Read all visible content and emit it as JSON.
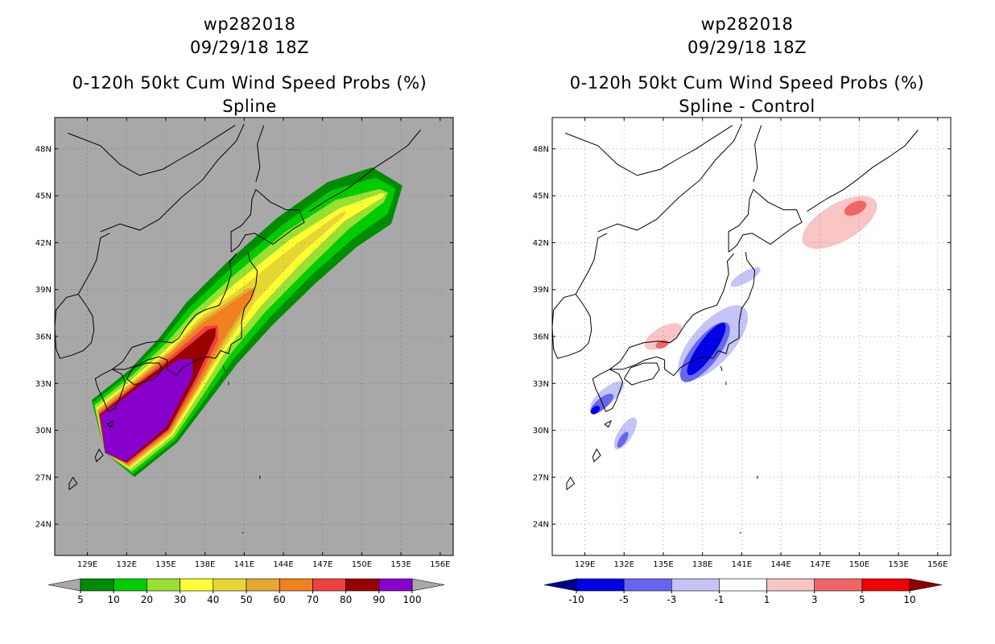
{
  "panels": [
    {
      "id": "left",
      "title_line1": "wp282018",
      "title_line2": "09/29/18 18Z",
      "title_line3": "0-120h 50kt Cum Wind Speed Probs (%)",
      "subtitle": "Spline",
      "background": "#a8a8a8"
    },
    {
      "id": "right",
      "title_line1": "wp282018",
      "title_line2": "09/29/18 18Z",
      "title_line3": "0-120h 50kt Cum Wind Speed Probs (%)",
      "subtitle": "Spline - Control",
      "background": "#ffffff"
    }
  ],
  "chart_data": [
    {
      "type": "heatmap",
      "title": "0-120h 50kt Cum Wind Speed Probs (%)",
      "subtitle": "Spline",
      "storm": "wp282018",
      "init_time": "09/29/18 18Z",
      "x_range": [
        126.5,
        157.0
      ],
      "y_range": [
        22.0,
        50.0
      ],
      "x_ticks": [
        129,
        132,
        135,
        138,
        141,
        144,
        147,
        150,
        153,
        156
      ],
      "x_tick_labels": [
        "129E",
        "132E",
        "135E",
        "138E",
        "141E",
        "144E",
        "147E",
        "150E",
        "153E",
        "156E"
      ],
      "y_ticks": [
        24,
        27,
        30,
        33,
        36,
        39,
        42,
        45,
        48
      ],
      "y_tick_labels": [
        "24N",
        "27N",
        "30N",
        "33N",
        "36N",
        "39N",
        "42N",
        "45N",
        "48N"
      ],
      "colorbar": {
        "labels": [
          "5",
          "10",
          "20",
          "30",
          "40",
          "50",
          "60",
          "70",
          "80",
          "90",
          "100"
        ],
        "colors": [
          "#008c00",
          "#00cc00",
          "#99e033",
          "#ffff33",
          "#e6d633",
          "#e6a833",
          "#f08020",
          "#f04040",
          "#990000",
          "#8800cc"
        ],
        "below_color": "#a8a8a8",
        "above_color": "#a8a8a8"
      },
      "swath": {
        "track": [
          [
            131.0,
            29.5
          ],
          [
            134.0,
            31.5
          ],
          [
            136.5,
            34.0
          ],
          [
            138.5,
            36.2
          ],
          [
            141.5,
            38.8
          ],
          [
            145.0,
            41.5
          ],
          [
            148.5,
            43.8
          ],
          [
            151.5,
            45.0
          ]
        ],
        "levels": [
          {
            "value": 5,
            "color": "#008c00",
            "widths_deg": [
              2.9,
              2.9,
              2.7,
              2.7,
              2.6,
              2.5,
              2.3,
              1.9
            ]
          },
          {
            "value": 10,
            "color": "#00cc00",
            "widths_deg": [
              2.7,
              2.7,
              2.4,
              2.3,
              2.1,
              1.9,
              1.7,
              1.2
            ]
          },
          {
            "value": 20,
            "color": "#99e033",
            "widths_deg": [
              2.5,
              2.5,
              2.1,
              1.9,
              1.6,
              1.4,
              1.0,
              0.4
            ]
          },
          {
            "value": 30,
            "color": "#ffff33",
            "widths_deg": [
              2.3,
              2.3,
              1.8,
              1.5,
              1.1,
              0.8,
              0.4,
              0.1
            ]
          },
          {
            "value": 40,
            "color": "#e6d633",
            "widths_deg": [
              2.2,
              2.2,
              1.6,
              1.3,
              0.6,
              0.3,
              0.1,
              0.0
            ]
          },
          {
            "value": 50,
            "color": "#e6a833",
            "widths_deg": [
              2.1,
              2.1,
              1.5,
              1.1,
              0.3,
              0.0,
              0.0,
              0.0
            ]
          },
          {
            "value": 60,
            "color": "#f08020",
            "widths_deg": [
              2.0,
              2.0,
              1.4,
              0.9,
              0.1,
              0.0,
              0.0,
              0.0
            ]
          },
          {
            "value": 70,
            "color": "#f04040",
            "widths_deg": [
              1.9,
              1.9,
              1.2,
              0.6,
              0.0,
              0.0,
              0.0,
              0.0
            ]
          },
          {
            "value": 80,
            "color": "#990000",
            "widths_deg": [
              1.8,
              1.8,
              1.0,
              0.3,
              0.0,
              0.0,
              0.0,
              0.0
            ]
          },
          {
            "value": 90,
            "color": "#8800cc",
            "widths_deg": [
              1.7,
              1.6,
              0.7,
              0.0,
              0.0,
              0.0,
              0.0,
              0.0
            ]
          }
        ]
      }
    },
    {
      "type": "heatmap",
      "title": "0-120h 50kt Cum Wind Speed Probs (%)",
      "subtitle": "Spline - Control",
      "storm": "wp282018",
      "init_time": "09/29/18 18Z",
      "x_range": [
        126.5,
        157.0
      ],
      "y_range": [
        22.0,
        50.0
      ],
      "x_ticks": [
        129,
        132,
        135,
        138,
        141,
        144,
        147,
        150,
        153,
        156
      ],
      "x_tick_labels": [
        "129E",
        "132E",
        "135E",
        "138E",
        "141E",
        "144E",
        "147E",
        "150E",
        "153E",
        "156E"
      ],
      "y_ticks": [
        24,
        27,
        30,
        33,
        36,
        39,
        42,
        45,
        48
      ],
      "y_tick_labels": [
        "24N",
        "27N",
        "30N",
        "33N",
        "36N",
        "39N",
        "42N",
        "45N",
        "48N"
      ],
      "colorbar": {
        "labels": [
          "-10",
          "-5",
          "-3",
          "-1",
          "1",
          "3",
          "5",
          "10"
        ],
        "colors": [
          "#0000e6",
          "#6666f0",
          "#c4c4f8",
          "#ffffff",
          "#f8c4c4",
          "#f06666",
          "#f00000"
        ],
        "below_color": "#00008c",
        "above_color": "#8c0000"
      },
      "blobs": [
        {
          "value": -3,
          "color": "#c4c4f8",
          "center": [
            138.8,
            35.6
          ],
          "rx": 3.6,
          "ry": 1.3,
          "angle": 48
        },
        {
          "value": -5,
          "color": "#6666f0",
          "center": [
            138.2,
            35.0
          ],
          "rx": 2.8,
          "ry": 0.85,
          "angle": 52
        },
        {
          "value": -10,
          "color": "#0000e6",
          "center": [
            138.3,
            35.2
          ],
          "rx": 2.4,
          "ry": 0.55,
          "angle": 55
        },
        {
          "value": -3,
          "color": "#c4c4f8",
          "center": [
            141.3,
            39.8
          ],
          "rx": 1.3,
          "ry": 0.35,
          "angle": 30
        },
        {
          "value": -3,
          "color": "#c4c4f8",
          "center": [
            130.7,
            32.2
          ],
          "rx": 1.6,
          "ry": 0.5,
          "angle": 40
        },
        {
          "value": -5,
          "color": "#6666f0",
          "center": [
            130.3,
            31.7
          ],
          "rx": 1.1,
          "ry": 0.35,
          "angle": 40
        },
        {
          "value": -10,
          "color": "#0000e6",
          "center": [
            129.8,
            31.3
          ],
          "rx": 0.4,
          "ry": 0.22,
          "angle": 40
        },
        {
          "value": -3,
          "color": "#c4c4f8",
          "center": [
            132.1,
            29.8
          ],
          "rx": 1.4,
          "ry": 0.45,
          "angle": 58
        },
        {
          "value": -5,
          "color": "#6666f0",
          "center": [
            131.9,
            29.4
          ],
          "rx": 0.7,
          "ry": 0.22,
          "angle": 58
        },
        {
          "value": 1,
          "color": "#f8c4c4",
          "center": [
            135.0,
            36.0
          ],
          "rx": 1.6,
          "ry": 0.6,
          "angle": 30
        },
        {
          "value": 3,
          "color": "#f06666",
          "center": [
            134.9,
            35.5
          ],
          "rx": 0.5,
          "ry": 0.25,
          "angle": 20
        },
        {
          "value": 1,
          "color": "#f8c4c4",
          "center": [
            148.5,
            43.3
          ],
          "rx": 3.2,
          "ry": 1.2,
          "angle": 30
        },
        {
          "value": 3,
          "color": "#f06666",
          "center": [
            149.7,
            44.2
          ],
          "rx": 0.9,
          "ry": 0.4,
          "angle": 25
        }
      ]
    }
  ]
}
